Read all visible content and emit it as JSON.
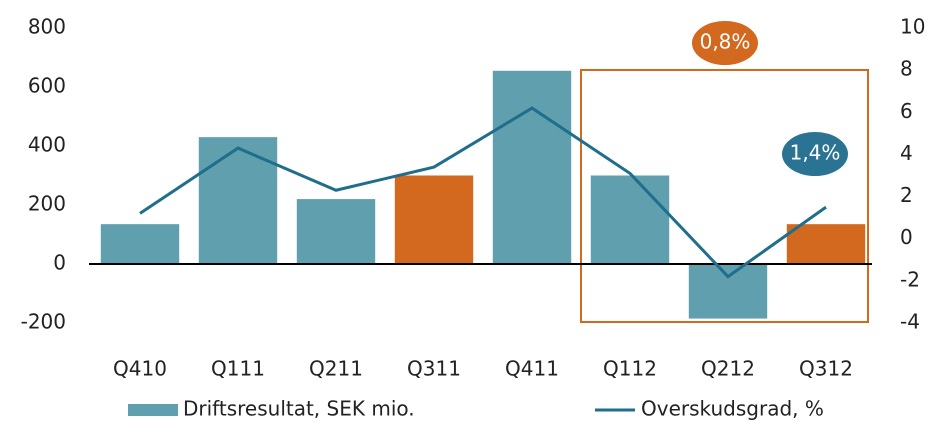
{
  "chart_data": {
    "type": "bar",
    "categories": [
      "Q410",
      "Q111",
      "Q211",
      "Q311",
      "Q411",
      "Q112",
      "Q212",
      "Q312"
    ],
    "series": [
      {
        "name": "Driftsresultat, SEK mio.",
        "type": "bar",
        "color": "#5f9fae",
        "colors": [
          "#5f9fae",
          "#5f9fae",
          "#5f9fae",
          "#d2691e",
          "#5f9fae",
          "#5f9fae",
          "#5f9fae",
          "#d2691e"
        ],
        "values": [
          135,
          430,
          220,
          300,
          655,
          300,
          -185,
          135
        ]
      },
      {
        "name": "Overskudsgrad, %",
        "type": "line",
        "axis": "y2",
        "color": "#1f6e8c",
        "values": [
          1.2,
          4.3,
          2.3,
          3.4,
          6.2,
          3.1,
          -1.8,
          1.5
        ]
      }
    ],
    "ylim": [
      -200,
      800
    ],
    "yticks": [
      -200,
      0,
      200,
      400,
      600,
      800
    ],
    "y2lim": [
      -4,
      10
    ],
    "y2ticks": [
      -4,
      -2,
      0,
      2,
      4,
      6,
      8,
      10
    ],
    "annotations": [
      {
        "text": "0,8%",
        "color": "#d2691e"
      },
      {
        "text": "1,4%",
        "color": "#2b7393"
      }
    ],
    "legend": "bottom"
  }
}
